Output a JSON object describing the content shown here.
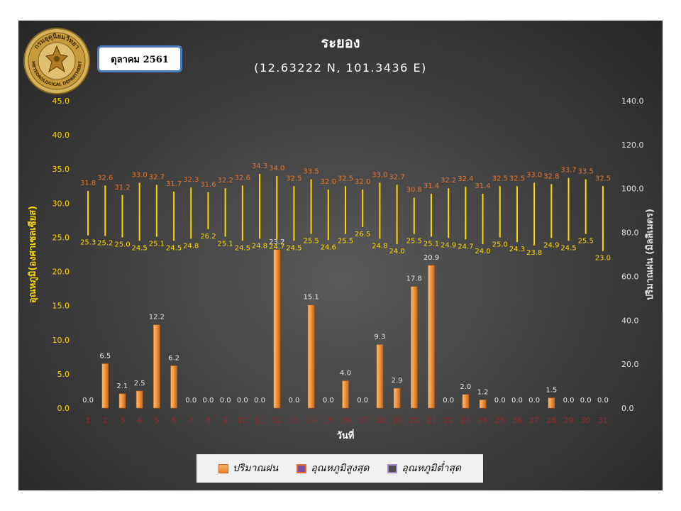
{
  "chart_data": {
    "type": "bar",
    "title": "ระยอง",
    "subtitle": "(12.63222 N, 101.3436 E)",
    "month_label": "ตุลาคม 2561",
    "xlabel": "วันที่",
    "ylabel_left": "อุณหภูมิ(องศาเซลเซียส)",
    "ylabel_right": "ปริมาณฝน (มิลลิเมตร)",
    "left_ticks": [
      "0.0",
      "5.0",
      "10.0",
      "15.0",
      "20.0",
      "25.0",
      "30.0",
      "35.0",
      "40.0",
      "45.0"
    ],
    "right_ticks": [
      "0.0",
      "20.0",
      "40.0",
      "60.0",
      "80.0",
      "100.0",
      "120.0",
      "140.0"
    ],
    "ylim_left": [
      0,
      45
    ],
    "ylim_right": [
      0,
      140
    ],
    "categories": [
      "1",
      "2",
      "3",
      "4",
      "5",
      "6",
      "7",
      "8",
      "9",
      "10",
      "11",
      "12",
      "13",
      "14",
      "15",
      "16",
      "17",
      "18",
      "19",
      "20",
      "21",
      "22",
      "23",
      "24",
      "25",
      "26",
      "27",
      "28",
      "29",
      "30",
      "31"
    ],
    "series": [
      {
        "name": "ปริมาณฝน",
        "axis": "left",
        "color": "#f0933c",
        "values": [
          0.0,
          6.5,
          2.1,
          2.5,
          12.2,
          6.2,
          0.0,
          0.0,
          0.0,
          0.0,
          0.0,
          23.2,
          0.0,
          15.1,
          0.0,
          4.0,
          0.0,
          9.3,
          2.9,
          17.8,
          20.9,
          0.0,
          2.0,
          1.2,
          0.0,
          0.0,
          0.0,
          1.5,
          0.0,
          0.0,
          0.0
        ],
        "labels": [
          "0.0",
          "6.5",
          "2.1",
          "2.5",
          "12.2",
          "6.2",
          "0.0",
          "0.0",
          "0.0",
          "0.0",
          "0.0",
          "23.2",
          "0.0",
          "15.1",
          "0.0",
          "4.0",
          "0.0",
          "9.3",
          "2.9",
          "17.8",
          "20.9",
          "0.0",
          "2.0",
          "1.2",
          "0.0",
          "0.0",
          "0.0",
          "1.5",
          "0.0",
          "0.0",
          "0.0"
        ]
      },
      {
        "name": "อุณหภูมิสูงสุด",
        "axis": "left",
        "color": "#e9742a",
        "values": [
          31.8,
          32.6,
          31.2,
          33.0,
          32.7,
          31.7,
          32.3,
          31.6,
          32.2,
          32.6,
          34.3,
          34.0,
          32.5,
          33.5,
          32.0,
          32.5,
          32.0,
          33.0,
          32.7,
          30.8,
          31.4,
          32.2,
          32.4,
          31.4,
          32.5,
          32.5,
          33.0,
          32.8,
          33.7,
          33.5,
          32.5
        ],
        "labels": [
          "31.8",
          "32.6",
          "31.2",
          "33.0",
          "32.7",
          "31.7",
          "32.3",
          "31.6",
          "32.2",
          "32.6",
          "34.3",
          "34.0",
          "32.5",
          "33.5",
          "32.0",
          "32.5",
          "32.0",
          "33.0",
          "32.7",
          "30.8",
          "31.4",
          "32.2",
          "32.4",
          "31.4",
          "32.5",
          "32.5",
          "33.0",
          "32.8",
          "33.7",
          "33.5",
          "32.5"
        ]
      },
      {
        "name": "อุณหภูมิต่ำสุด",
        "axis": "left",
        "color": "#ffd700",
        "values": [
          25.3,
          25.2,
          25.0,
          24.5,
          25.1,
          24.5,
          24.8,
          26.2,
          25.1,
          24.5,
          24.8,
          24.7,
          24.5,
          25.5,
          24.6,
          25.5,
          26.5,
          24.8,
          24.0,
          25.5,
          25.1,
          24.9,
          24.7,
          24.0,
          25.0,
          24.3,
          23.8,
          24.9,
          24.5,
          25.5,
          23.0
        ],
        "labels": [
          "25.3",
          "25.2",
          "25.0",
          "24.5",
          "25.1",
          "24.5",
          "24.8",
          "26.2",
          "25.1",
          "24.5",
          "24.8",
          "24.7",
          "24.5",
          "25.5",
          "24.6",
          "25.5",
          "26.5",
          "24.8",
          "24.0",
          "25.5",
          "25.1",
          "24.9",
          "24.7",
          "24.0",
          "25.0",
          "24.3",
          "23.8",
          "24.9",
          "24.5",
          "25.5",
          "23.0"
        ]
      }
    ],
    "legend_position": "bottom",
    "grid": false
  },
  "logo": {
    "text_top": "กรมอุตุนิยมวิทยา",
    "text_bottom": "METEOROLOGICAL DEPARTMENT"
  },
  "colors": {
    "rain_bar": "#f0933c",
    "max_label": "#e9742a",
    "min_label": "#ffd700",
    "range_line": "#ffd700",
    "left_axis_text": "#ffd700",
    "right_axis_text": "#e0e0e0",
    "x_tick_text": "#9b2a2a"
  }
}
